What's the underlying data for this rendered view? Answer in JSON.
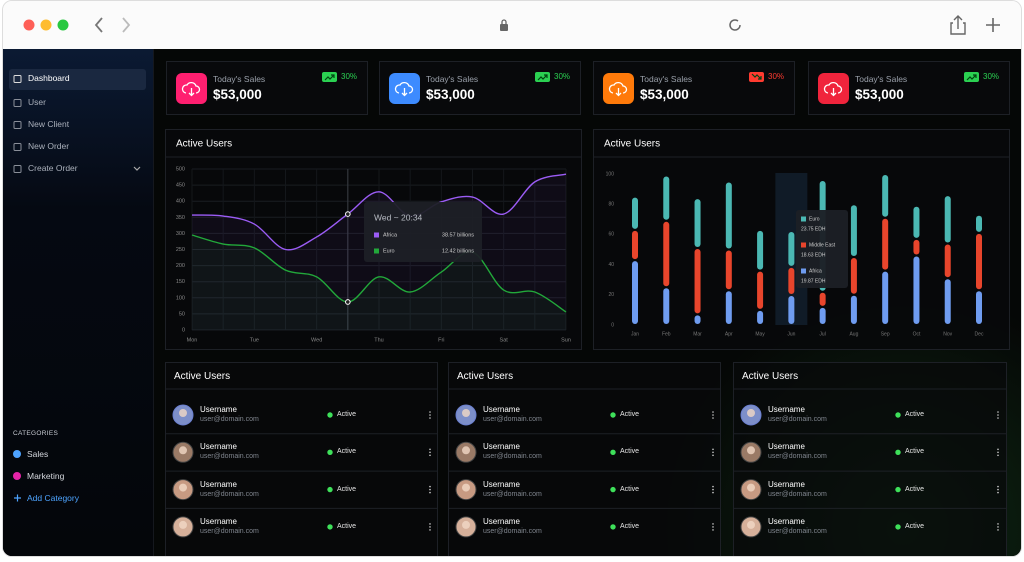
{
  "sidebar": {
    "nav": [
      {
        "label": "Dashboard",
        "active": true
      },
      {
        "label": "User"
      },
      {
        "label": "New Client"
      },
      {
        "label": "New Order"
      },
      {
        "label": "Create Order",
        "expandable": true
      }
    ],
    "categories_title": "CATEGORIES",
    "categories": [
      {
        "label": "Sales",
        "color": "#4da3ff"
      },
      {
        "label": "Marketing",
        "color": "#e524a8"
      }
    ],
    "add_category": "Add Category"
  },
  "stats": [
    {
      "title": "Today's Sales",
      "value": "$53,000",
      "change": "30%",
      "trend": "up",
      "color": "#ff1f70"
    },
    {
      "title": "Today's Sales",
      "value": "$53,000",
      "change": "30%",
      "trend": "up",
      "color": "#3d8bff"
    },
    {
      "title": "Today's Sales",
      "value": "$53,000",
      "change": "30%",
      "trend": "down",
      "color": "#ff7a0a"
    },
    {
      "title": "Today's Sales",
      "value": "$53,000",
      "change": "30%",
      "trend": "up",
      "color": "#f0243c"
    }
  ],
  "chart_data": [
    {
      "type": "line",
      "title": "Active Users",
      "categories": [
        "Mon",
        null,
        "Tue",
        null,
        "Wed",
        null,
        "Thu",
        null,
        "Fri",
        null,
        "Sat",
        null,
        "Sun"
      ],
      "series": [
        {
          "name": "Africa",
          "color": "#9b5cf5",
          "values": [
            357,
            354,
            329,
            250,
            289,
            360,
            429,
            354,
            398,
            413,
            360,
            460,
            484
          ]
        },
        {
          "name": "Euro",
          "color": "#22a83a",
          "values": [
            295,
            267,
            255,
            186,
            165,
            87,
            165,
            118,
            180,
            242,
            124,
            118,
            56
          ]
        }
      ],
      "ylim": [
        0,
        500
      ],
      "yticks": [
        0,
        50,
        100,
        150,
        200,
        250,
        300,
        350,
        400,
        450,
        500
      ],
      "grid": true,
      "tooltip": {
        "title": "Wed ~ 20:34",
        "value_labels": [
          "38.57 billions",
          "12.42 billions"
        ]
      }
    },
    {
      "type": "bar",
      "stacked": true,
      "title": "Active Users",
      "categories": [
        "Jan",
        "Feb",
        "Mar",
        "Apr",
        "May",
        "Jun",
        "Jul",
        "Aug",
        "Sep",
        "Oct",
        "Nov",
        "Dec"
      ],
      "series": [
        {
          "name": "Africa",
          "color": "#6f9cf0",
          "values": [
            43,
            25,
            7,
            23,
            10,
            19.87,
            12,
            20,
            36,
            46,
            31,
            23
          ]
        },
        {
          "name": "Middle East",
          "color": "#e8452c",
          "values": [
            20,
            44,
            44,
            27,
            26,
            18.63,
            10,
            25,
            35,
            11,
            23,
            38
          ]
        },
        {
          "name": "Euro",
          "color": "#4bb8b3",
          "values": [
            22,
            30,
            33,
            45,
            27,
            23.75,
            74,
            35,
            29,
            22,
            32,
            12
          ]
        }
      ],
      "ylim": [
        0,
        100
      ],
      "yticks": [
        0,
        20,
        40,
        60,
        80,
        100
      ],
      "tooltip": {
        "value_labels": [
          "19.87 EDH",
          "18.63 EDH",
          "23.75 EDH"
        ]
      }
    }
  ],
  "tables": [
    {
      "title": "Active Users",
      "rows": [
        {
          "name": "Username",
          "email": "user@domain.com",
          "status": "Active"
        },
        {
          "name": "Username",
          "email": "user@domain.com",
          "status": "Active"
        },
        {
          "name": "Username",
          "email": "user@domain.com",
          "status": "Active"
        },
        {
          "name": "Username",
          "email": "user@domain.com",
          "status": "Active"
        }
      ]
    },
    {
      "title": "Active Users",
      "rows": [
        {
          "name": "Username",
          "email": "user@domain.com",
          "status": "Active"
        },
        {
          "name": "Username",
          "email": "user@domain.com",
          "status": "Active"
        },
        {
          "name": "Username",
          "email": "user@domain.com",
          "status": "Active"
        },
        {
          "name": "Username",
          "email": "user@domain.com",
          "status": "Active"
        }
      ]
    },
    {
      "title": "Active Users",
      "rows": [
        {
          "name": "Username",
          "email": "user@domain.com",
          "status": "Active"
        },
        {
          "name": "Username",
          "email": "user@domain.com",
          "status": "Active"
        },
        {
          "name": "Username",
          "email": "user@domain.com",
          "status": "Active"
        },
        {
          "name": "Username",
          "email": "user@domain.com",
          "status": "Active"
        }
      ]
    }
  ]
}
